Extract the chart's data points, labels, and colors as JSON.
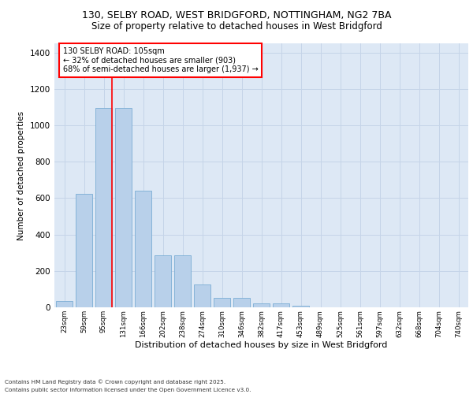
{
  "title_line1": "130, SELBY ROAD, WEST BRIDGFORD, NOTTINGHAM, NG2 7BA",
  "title_line2": "Size of property relative to detached houses in West Bridgford",
  "xlabel": "Distribution of detached houses by size in West Bridgford",
  "ylabel": "Number of detached properties",
  "categories": [
    "23sqm",
    "59sqm",
    "95sqm",
    "131sqm",
    "166sqm",
    "202sqm",
    "238sqm",
    "274sqm",
    "310sqm",
    "346sqm",
    "382sqm",
    "417sqm",
    "453sqm",
    "489sqm",
    "525sqm",
    "561sqm",
    "597sqm",
    "632sqm",
    "668sqm",
    "704sqm",
    "740sqm"
  ],
  "values": [
    35,
    625,
    1095,
    1095,
    640,
    285,
    285,
    125,
    50,
    50,
    22,
    22,
    8,
    0,
    0,
    0,
    0,
    0,
    0,
    0,
    0
  ],
  "bar_color": "#b8d0ea",
  "bar_edge_color": "#7aadd4",
  "vline_x_index": 2.42,
  "vline_color": "red",
  "annotation_text": "130 SELBY ROAD: 105sqm\n← 32% of detached houses are smaller (903)\n68% of semi-detached houses are larger (1,937) →",
  "annotation_box_color": "white",
  "annotation_box_edge": "red",
  "ylim": [
    0,
    1450
  ],
  "yticks": [
    0,
    200,
    400,
    600,
    800,
    1000,
    1200,
    1400
  ],
  "footer_line1": "Contains HM Land Registry data © Crown copyright and database right 2025.",
  "footer_line2": "Contains public sector information licensed under the Open Government Licence v3.0.",
  "background_color": "#dde8f5",
  "grid_color": "#c5d4e8"
}
